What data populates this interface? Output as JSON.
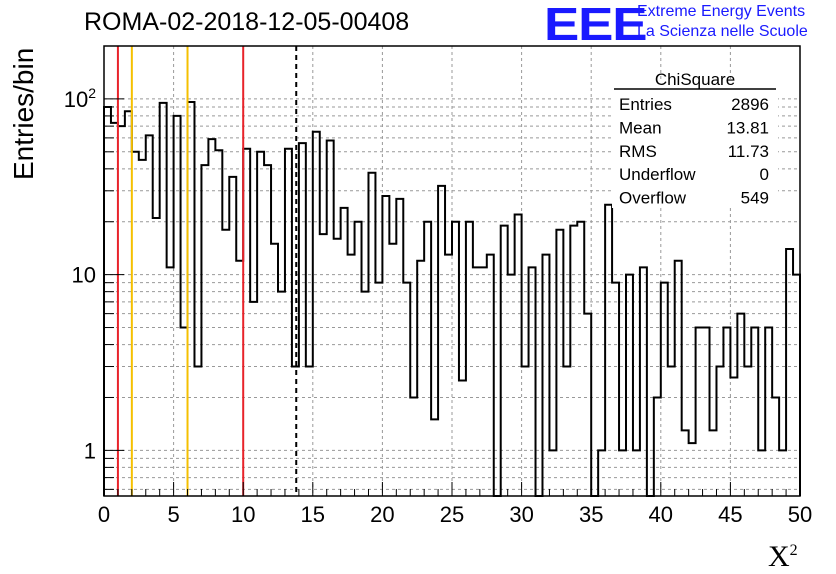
{
  "title": "ROMA-02-2018-12-05-00408",
  "logo": {
    "text": "EEE",
    "line1": "Extreme Energy Events",
    "line2": "La Scienza nelle Scuole",
    "color": "#1a1aff"
  },
  "chart_data": {
    "type": "bar",
    "ylabel": "Entries/bin",
    "xlabel": "X",
    "xlabel_sup": "2",
    "xlim": [
      0,
      50
    ],
    "ylim": [
      0.55,
      200
    ],
    "ylog": true,
    "grid": true,
    "bin_width": 0.5,
    "xticks": [
      0,
      5,
      10,
      15,
      20,
      25,
      30,
      35,
      40,
      45,
      50
    ],
    "yticks": [
      {
        "value": 1,
        "label": "1"
      },
      {
        "value": 10,
        "label": "10"
      },
      {
        "value": 100,
        "label": "10",
        "sup": "2"
      }
    ],
    "values": [
      90,
      73,
      70,
      85,
      50,
      45,
      62,
      21,
      95,
      11,
      80,
      5,
      96,
      3,
      42,
      59,
      51,
      18,
      36,
      12,
      52,
      7,
      50,
      42,
      15,
      8,
      52,
      3,
      56,
      3,
      65,
      17,
      58,
      16,
      24,
      13,
      20,
      8,
      38,
      9,
      28,
      15,
      27,
      9,
      2,
      12,
      20,
      1.5,
      32,
      13,
      20,
      2.5,
      20,
      11,
      11,
      13,
      0.5,
      19,
      10,
      22,
      3,
      11,
      0.5,
      13,
      1,
      18,
      3,
      19,
      20,
      6,
      0.5,
      1,
      25,
      9,
      1,
      10,
      1,
      11,
      0.5,
      2,
      9,
      3,
      12,
      1.3,
      1.1,
      5,
      5,
      1.3,
      3,
      5,
      2.6,
      6,
      3,
      5,
      1,
      5,
      2,
      1,
      14,
      10
    ],
    "vlines": [
      {
        "x": 1,
        "color": "#e8232a",
        "style": "solid"
      },
      {
        "x": 2,
        "color": "#f5c000",
        "style": "solid"
      },
      {
        "x": 6,
        "color": "#f5c000",
        "style": "solid"
      },
      {
        "x": 10,
        "color": "#e8232a",
        "style": "solid"
      },
      {
        "x": 13.81,
        "color": "#000000",
        "style": "dashed"
      }
    ],
    "stats": {
      "name": "ChiSquare",
      "rows": [
        {
          "label": "Entries",
          "value": "2896"
        },
        {
          "label": "Mean",
          "value": "13.81"
        },
        {
          "label": "RMS",
          "value": "11.73"
        },
        {
          "label": "Underflow",
          "value": "0"
        },
        {
          "label": "Overflow",
          "value": "549"
        }
      ]
    }
  }
}
